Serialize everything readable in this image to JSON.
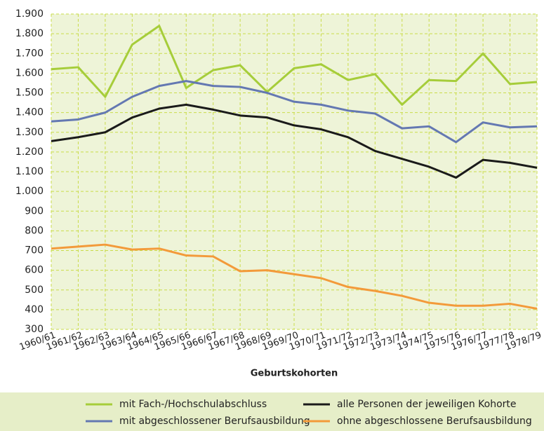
{
  "chart_data": {
    "type": "line",
    "x_label": "Geburtskohorten",
    "categories": [
      "1960/61",
      "1961/62",
      "1962/63",
      "1963/64",
      "1964/65",
      "1965/66",
      "1966/67",
      "1967/68",
      "1968/69",
      "1969/70",
      "1970/71",
      "1971/72",
      "1972/73",
      "1973/74",
      "1974/75",
      "1975/76",
      "1976/77",
      "1977/78",
      "1978/79"
    ],
    "series": [
      {
        "name": "mit Fach-/Hochschulabschluss",
        "color": "#a6cd3a",
        "values": [
          1620,
          1630,
          1480,
          1745,
          1840,
          1525,
          1615,
          1640,
          1505,
          1625,
          1645,
          1565,
          1595,
          1440,
          1565,
          1560,
          1700,
          1545,
          1555
        ]
      },
      {
        "name": "mit abgeschlossener Berufsausbildung",
        "color": "#6478b2",
        "values": [
          1355,
          1365,
          1400,
          1480,
          1535,
          1560,
          1535,
          1530,
          1500,
          1455,
          1440,
          1410,
          1395,
          1320,
          1330,
          1250,
          1350,
          1325,
          1330
        ]
      },
      {
        "name": "alle Personen der jeweiligen Kohorte",
        "color": "#1a1a1a",
        "values": [
          1255,
          1275,
          1300,
          1375,
          1420,
          1440,
          1415,
          1385,
          1375,
          1335,
          1315,
          1275,
          1205,
          1165,
          1125,
          1070,
          1160,
          1145,
          1120
        ]
      },
      {
        "name": "ohne abgeschlossene Berufsausbildung",
        "color": "#f39a3a",
        "values": [
          710,
          720,
          730,
          705,
          710,
          675,
          670,
          595,
          600,
          580,
          560,
          515,
          495,
          470,
          435,
          420,
          420,
          430,
          405
        ]
      }
    ],
    "ylim": [
      300,
      1900
    ],
    "yticks": [
      {
        "value": 1900,
        "label": "1.900"
      },
      {
        "value": 1800,
        "label": "1.800"
      },
      {
        "value": 1700,
        "label": "1.700"
      },
      {
        "value": 1600,
        "label": "1.600"
      },
      {
        "value": 1500,
        "label": "1.500"
      },
      {
        "value": 1400,
        "label": "1.400"
      },
      {
        "value": 1300,
        "label": "1.300"
      },
      {
        "value": 1200,
        "label": "1.200"
      },
      {
        "value": 1100,
        "label": "1.100"
      },
      {
        "value": 1000,
        "label": "1.000"
      },
      900,
      800,
      700,
      600,
      500,
      400,
      300
    ],
    "grid": true
  }
}
